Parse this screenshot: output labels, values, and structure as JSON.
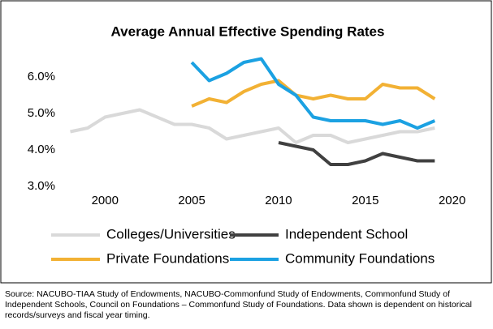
{
  "chart_data": {
    "type": "line",
    "title": "Average Annual Effective Spending Rates",
    "xlim": [
      1997.6,
      2021
    ],
    "xticks": [
      2000,
      2005,
      2010,
      2015,
      2020
    ],
    "ylim": [
      3,
      7
    ],
    "yticks": [
      {
        "value": 3,
        "label": "3.0%"
      },
      {
        "value": 4,
        "label": "4.0%"
      },
      {
        "value": 5,
        "label": "5.0%"
      },
      {
        "value": 6,
        "label": "6.0%"
      }
    ],
    "series": [
      {
        "name": "Colleges/Universities",
        "color": "#d9d9d9",
        "x": [
          1998,
          1999,
          2000,
          2001,
          2002,
          2003,
          2004,
          2005,
          2006,
          2007,
          2008,
          2009,
          2010,
          2011,
          2012,
          2013,
          2014,
          2015,
          2016,
          2017,
          2018,
          2019
        ],
        "values": [
          4.5,
          4.6,
          4.9,
          5.0,
          5.1,
          4.9,
          4.7,
          4.7,
          4.6,
          4.3,
          4.4,
          4.5,
          4.6,
          4.2,
          4.4,
          4.4,
          4.2,
          4.3,
          4.4,
          4.5,
          4.5,
          4.6
        ]
      },
      {
        "name": "Independent School",
        "color": "#404040",
        "x": [
          2010,
          2011,
          2012,
          2013,
          2014,
          2015,
          2016,
          2017,
          2018,
          2019
        ],
        "values": [
          4.2,
          4.1,
          4.0,
          3.6,
          3.6,
          3.7,
          3.9,
          3.8,
          3.7,
          3.7
        ]
      },
      {
        "name": "Private Foundations",
        "color": "#f2b134",
        "x": [
          2005,
          2006,
          2007,
          2008,
          2009,
          2010,
          2011,
          2012,
          2013,
          2014,
          2015,
          2016,
          2017,
          2018,
          2019
        ],
        "values": [
          5.2,
          5.4,
          5.3,
          5.6,
          5.8,
          5.9,
          5.5,
          5.4,
          5.5,
          5.4,
          5.4,
          5.8,
          5.7,
          5.7,
          5.4
        ]
      },
      {
        "name": "Community Foundations",
        "color": "#1ba1e2",
        "x": [
          2005,
          2006,
          2007,
          2008,
          2009,
          2010,
          2011,
          2012,
          2013,
          2014,
          2015,
          2016,
          2017,
          2018,
          2019
        ],
        "values": [
          6.4,
          5.9,
          6.1,
          6.4,
          6.5,
          5.8,
          5.5,
          4.9,
          4.8,
          4.8,
          4.8,
          4.7,
          4.8,
          4.6,
          4.8
        ]
      }
    ],
    "source": "Source: NACUBO-TIAA Study of Endowments, NACUBO-Commonfund Study of Endowments, Commonfund Study of Independent Schools, Council on Foundations – Commonfund Study of Foundations. Data shown is dependent on historical records/surveys and fiscal year timing."
  }
}
